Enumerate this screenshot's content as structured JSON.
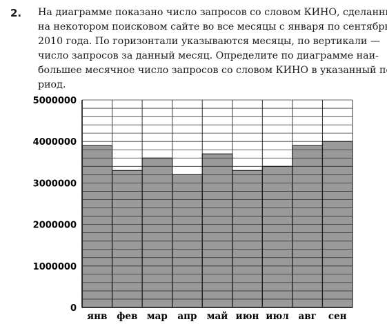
{
  "problem": {
    "number": "2.",
    "lines": [
      "На диаграмме показано число запросов со словом КИНО, сделанных",
      "на некотором поисковом сайте во все месяцы с января по сентябрь",
      "2010 года. По горизонтали указываются месяцы, по вертикали —",
      "число запросов за данный месяц. Определите по диаграмме наи-",
      "большее месячное число запросов со словом КИНО в указанный пе-",
      "риод."
    ]
  },
  "chart_data": {
    "type": "bar",
    "categories": [
      "янв",
      "фев",
      "мар",
      "апр",
      "май",
      "июн",
      "июл",
      "авг",
      "сен"
    ],
    "values": [
      3900000,
      3300000,
      3600000,
      3200000,
      3700000,
      3300000,
      3400000,
      3900000,
      4000000
    ],
    "ylim": [
      0,
      5000000
    ],
    "yticks": [
      "0",
      "1000000",
      "2000000",
      "3000000",
      "4000000",
      "5000000"
    ],
    "ytick_values": [
      0,
      1000000,
      2000000,
      3000000,
      4000000,
      5000000
    ],
    "minor_step": 200000,
    "grid": true,
    "colors": {
      "bar": "#9a9a9a",
      "line": "#333333",
      "background": "#ffffff"
    }
  }
}
